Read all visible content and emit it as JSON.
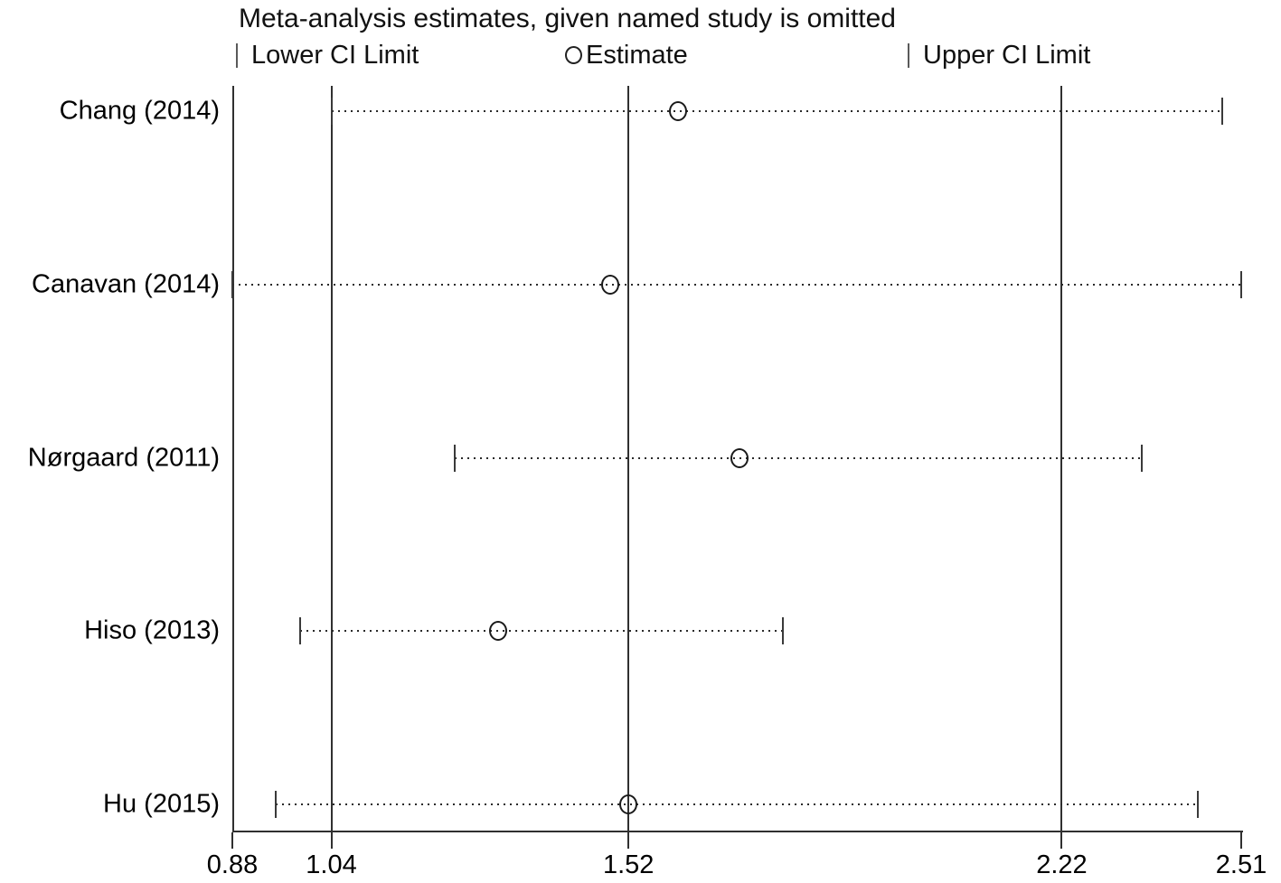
{
  "title": "Meta-analysis estimates, given named study is omitted",
  "legend": {
    "lower": "Lower CI Limit",
    "estimate": "Estimate",
    "upper": "Upper CI Limit"
  },
  "colors": {
    "ink": "#000000",
    "line": "#303030",
    "background": "#ffffff"
  },
  "chart_data": {
    "type": "scatter",
    "subtype": "leave-one-out-forest-plot",
    "title": "Meta-analysis estimates, given named study is omitted",
    "legend_entries": [
      "Lower CI Limit",
      "Estimate",
      "Upper CI Limit"
    ],
    "legend_position": "top",
    "studies": [
      {
        "label": "Chang (2014)",
        "lower": 1.04,
        "estimate": 1.6,
        "upper": 2.48
      },
      {
        "label": "Canavan (2014)",
        "lower": 0.88,
        "estimate": 1.49,
        "upper": 2.51
      },
      {
        "label": "Nørgaard (2011)",
        "lower": 1.24,
        "estimate": 1.7,
        "upper": 2.35
      },
      {
        "label": "Hiso (2013)",
        "lower": 0.99,
        "estimate": 1.31,
        "upper": 1.77
      },
      {
        "label": "Hu (2015)",
        "lower": 0.95,
        "estimate": 1.52,
        "upper": 2.44
      }
    ],
    "series": [
      {
        "name": "Lower CI Limit",
        "values": [
          1.04,
          0.88,
          1.24,
          0.99,
          0.95
        ]
      },
      {
        "name": "Estimate",
        "values": [
          1.6,
          1.49,
          1.7,
          1.31,
          1.52
        ]
      },
      {
        "name": "Upper CI Limit",
        "values": [
          2.48,
          2.51,
          2.35,
          1.77,
          2.44
        ]
      }
    ],
    "xlim": [
      0.88,
      2.51
    ],
    "x_tick_values": [
      0.88,
      1.04,
      1.52,
      2.22,
      2.51
    ],
    "x_tick_labels": [
      "0.88",
      "1.04",
      "1.52",
      "2.22",
      "2.51"
    ],
    "reference_lines": [
      1.04,
      1.52,
      2.22
    ],
    "grid": "vertical reference lines at pooled lower CI, estimate, upper CI"
  }
}
